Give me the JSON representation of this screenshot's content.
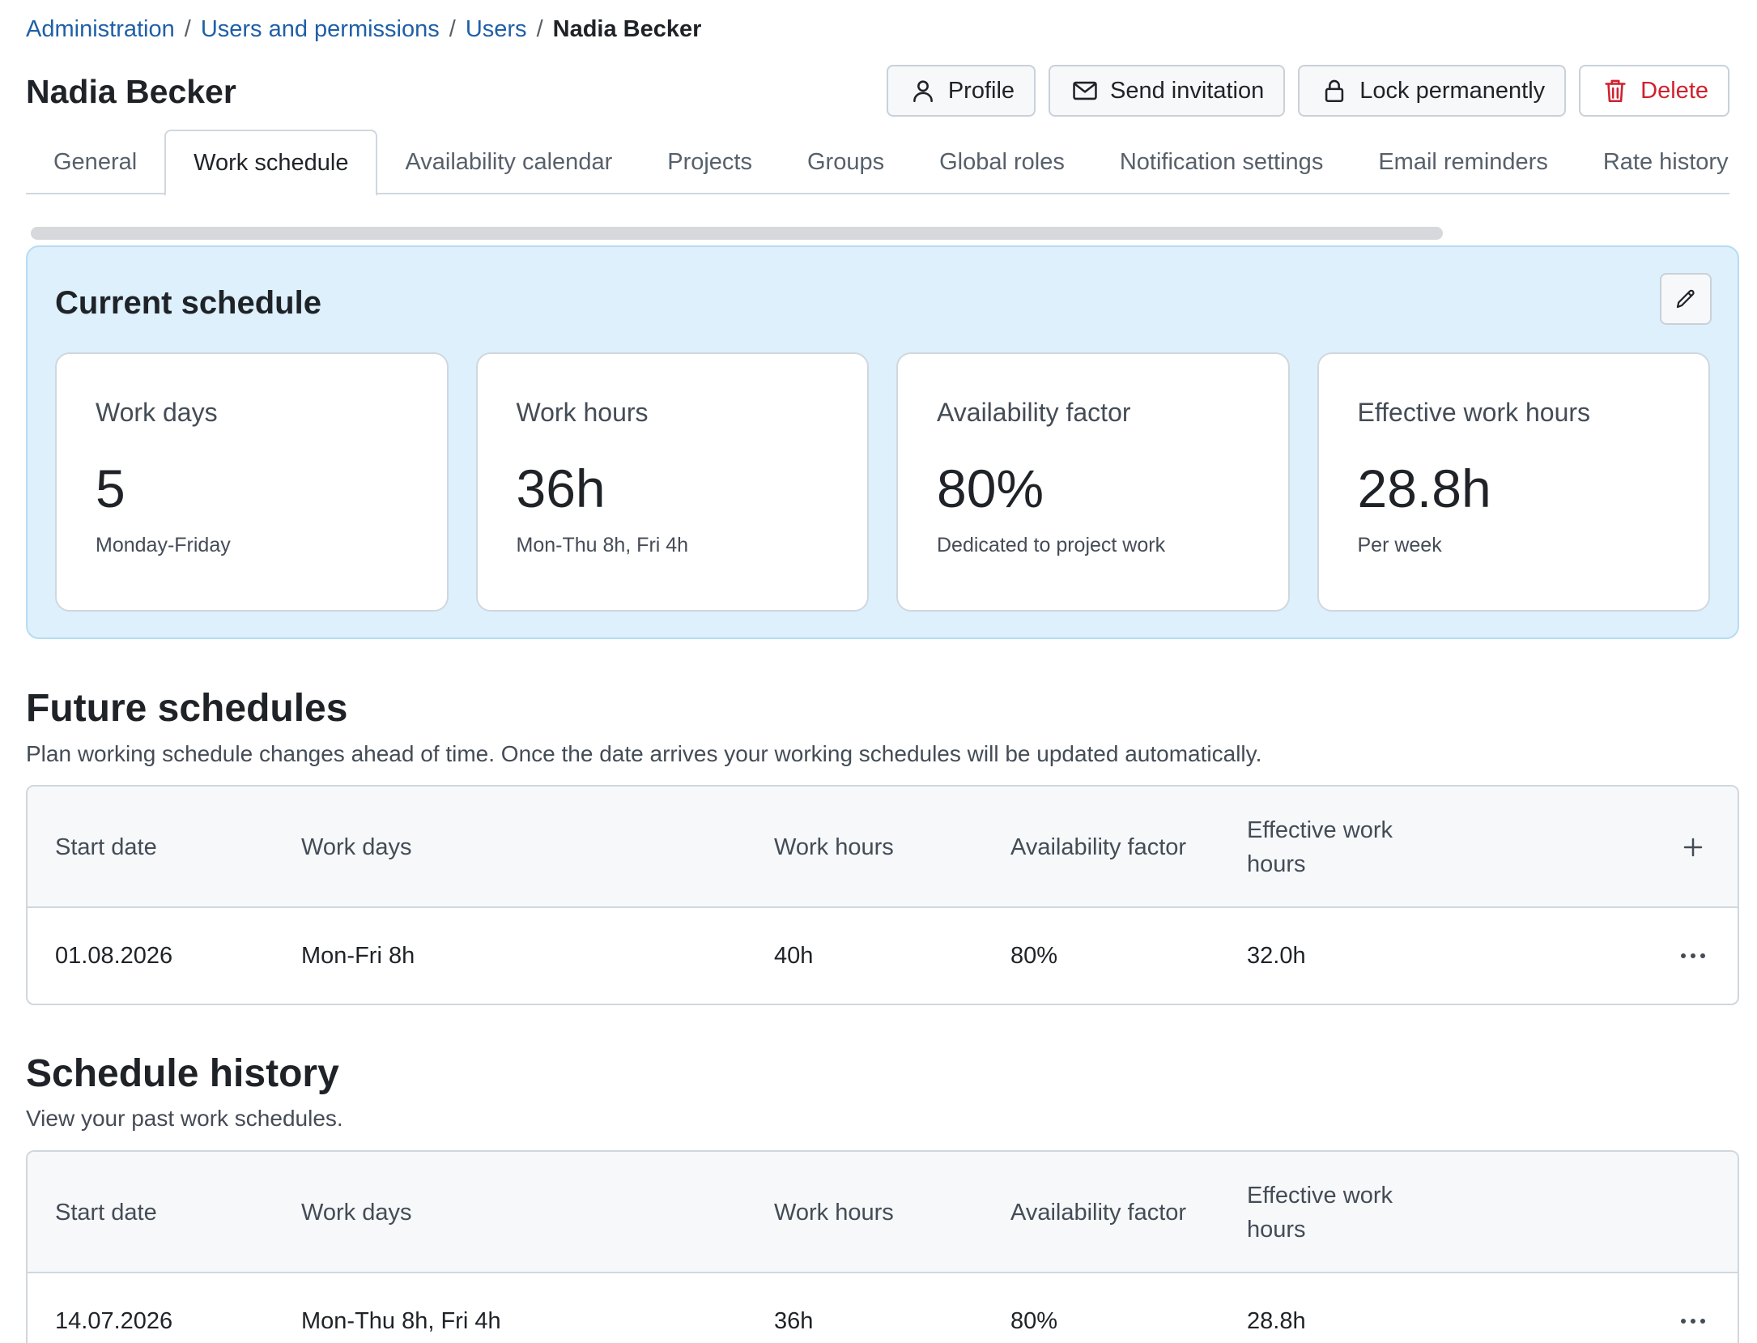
{
  "breadcrumb": {
    "items": [
      "Administration",
      "Users and permissions",
      "Users"
    ],
    "separator": "/",
    "current": "Nadia Becker"
  },
  "page": {
    "title": "Nadia Becker"
  },
  "actions": {
    "profile": "Profile",
    "send_invitation": "Send invitation",
    "lock_permanently": "Lock permanently",
    "delete": "Delete"
  },
  "tabs": [
    {
      "label": "General"
    },
    {
      "label": "Work schedule",
      "active": true
    },
    {
      "label": "Availability calendar"
    },
    {
      "label": "Projects"
    },
    {
      "label": "Groups"
    },
    {
      "label": "Global roles"
    },
    {
      "label": "Notification settings"
    },
    {
      "label": "Email reminders"
    },
    {
      "label": "Rate history"
    }
  ],
  "current_schedule": {
    "title": "Current schedule",
    "cards": [
      {
        "label": "Work days",
        "value": "5",
        "sub": "Monday-Friday"
      },
      {
        "label": "Work hours",
        "value": "36h",
        "sub": "Mon-Thu 8h, Fri 4h"
      },
      {
        "label": "Availability factor",
        "value": "80%",
        "sub": "Dedicated to project work"
      },
      {
        "label": "Effective work hours",
        "value": "28.8h",
        "sub": "Per week"
      }
    ]
  },
  "future": {
    "title": "Future schedules",
    "description": "Plan working schedule changes ahead of time. Once the date arrives your working schedules will be updated automatically.",
    "columns": [
      "Start date",
      "Work days",
      "Work hours",
      "Availability factor",
      "Effective work hours"
    ],
    "rows": [
      [
        "01.08.2026",
        "Mon-Fri 8h",
        "40h",
        "80%",
        "32.0h"
      ]
    ]
  },
  "history": {
    "title": "Schedule history",
    "description": "View your past work schedules.",
    "columns": [
      "Start date",
      "Work days",
      "Work hours",
      "Availability factor",
      "Effective work hours"
    ],
    "rows": [
      [
        "14.07.2026",
        "Mon-Thu 8h, Fri 4h",
        "36h",
        "80%",
        "28.8h"
      ]
    ]
  },
  "colors": {
    "link": "#1f5fa8",
    "danger": "#cf222e",
    "panel_bg": "#ddf0fb"
  },
  "icons": [
    "person-icon",
    "envelope-icon",
    "lock-icon",
    "trash-icon",
    "pencil-icon",
    "plus-icon",
    "more-horizontal-icon"
  ]
}
